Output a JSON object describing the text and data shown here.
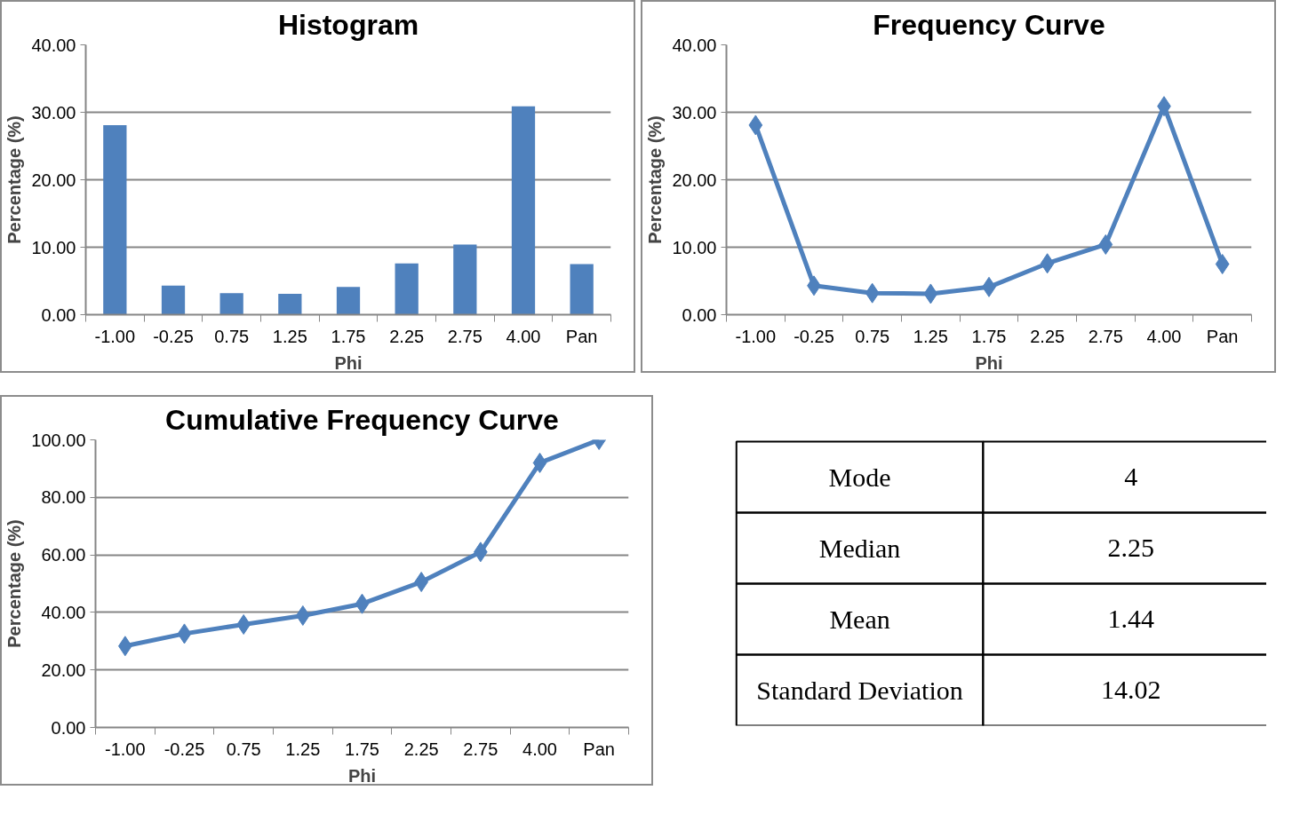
{
  "chart_data": [
    {
      "type": "bar",
      "title": "Histogram",
      "xlabel": "Phi",
      "ylabel": "Percentage (%)",
      "categories": [
        "-1.00",
        "-0.25",
        "0.75",
        "1.25",
        "1.75",
        "2.25",
        "2.75",
        "4.00",
        "Pan"
      ],
      "series": [
        {
          "color": "#4f81bd",
          "values": [
            28.1,
            4.3,
            3.2,
            3.1,
            4.1,
            7.6,
            10.4,
            30.9,
            7.5
          ]
        }
      ],
      "ylim": [
        0,
        40
      ],
      "yticks": [
        {
          "value": 0,
          "label": "0.00"
        },
        {
          "value": 10,
          "label": "10.00"
        },
        {
          "value": 20,
          "label": "20.00"
        },
        {
          "value": 30,
          "label": "30.00"
        },
        {
          "value": 40,
          "label": "40.00"
        }
      ],
      "grid": "y"
    },
    {
      "type": "line",
      "title": "Frequency Curve",
      "xlabel": "Phi",
      "ylabel": "Percentage (%)",
      "categories": [
        "-1.00",
        "-0.25",
        "0.75",
        "1.25",
        "1.75",
        "2.25",
        "2.75",
        "4.00",
        "Pan"
      ],
      "series": [
        {
          "color": "#4f81bd",
          "values": [
            28.1,
            4.3,
            3.2,
            3.1,
            4.1,
            7.6,
            10.4,
            30.9,
            7.5
          ]
        }
      ],
      "ylim": [
        0,
        40
      ],
      "yticks": [
        {
          "value": 0,
          "label": "0.00"
        },
        {
          "value": 10,
          "label": "10.00"
        },
        {
          "value": 20,
          "label": "20.00"
        },
        {
          "value": 30,
          "label": "30.00"
        },
        {
          "value": 40,
          "label": "40.00"
        }
      ],
      "grid": "y",
      "marker": "diamond",
      "line_style": "solid"
    },
    {
      "type": "line",
      "title": "Cumulative Frequency Curve",
      "xlabel": "Phi",
      "ylabel": "Percentage (%)",
      "categories": [
        "-1.00",
        "-0.25",
        "0.75",
        "1.25",
        "1.75",
        "2.25",
        "2.75",
        "4.00",
        "Pan"
      ],
      "series": [
        {
          "color": "#4f81bd",
          "values": [
            28.3,
            32.6,
            35.8,
            38.9,
            43.0,
            50.6,
            61.0,
            92.0,
            100
          ]
        }
      ],
      "ylim": [
        0,
        100
      ],
      "yticks": [
        {
          "value": 0,
          "label": "0.00"
        },
        {
          "value": 20,
          "label": "20.00"
        },
        {
          "value": 40,
          "label": "40.00"
        },
        {
          "value": 60,
          "label": "60.00"
        },
        {
          "value": 80,
          "label": "80.00"
        },
        {
          "value": 100,
          "label": "100.00"
        }
      ],
      "grid": "y",
      "marker": "diamond",
      "line_style": "solid"
    },
    {
      "type": "other",
      "categories": [
        "Mode",
        "Median",
        "Mean",
        "Standard Deviation"
      ],
      "values": [
        4,
        2.25,
        1.44,
        14.02
      ],
      "data_labels": true
    }
  ]
}
